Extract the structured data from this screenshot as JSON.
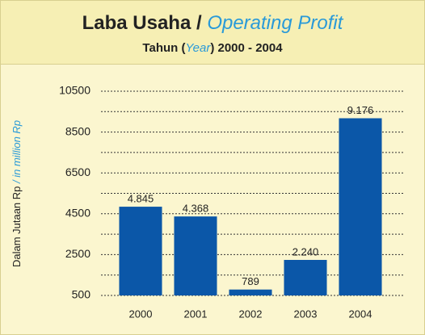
{
  "chart_data": {
    "type": "bar",
    "title_parts": [
      "Laba Usaha / ",
      "Operating Profit"
    ],
    "subtitle_parts": [
      "Tahun (",
      "Year",
      ") 2000 - 2004"
    ],
    "ylabel_parts": [
      "Dalam Jutaan Rp",
      " / in million Rp"
    ],
    "categories": [
      "2000",
      "2001",
      "2002",
      "2003",
      "2004"
    ],
    "values": [
      4845,
      4368,
      789,
      2240,
      9176
    ],
    "value_labels": [
      "4.845",
      "4.368",
      "789",
      "2.240",
      "9.176"
    ],
    "color": "#0b57a8",
    "ylim": [
      500,
      10500
    ],
    "yticks": [
      500,
      2500,
      4500,
      6500,
      8500,
      10500
    ],
    "minor_yticks": [
      1500,
      3500,
      5500,
      7500,
      9500
    ],
    "grid": true
  }
}
